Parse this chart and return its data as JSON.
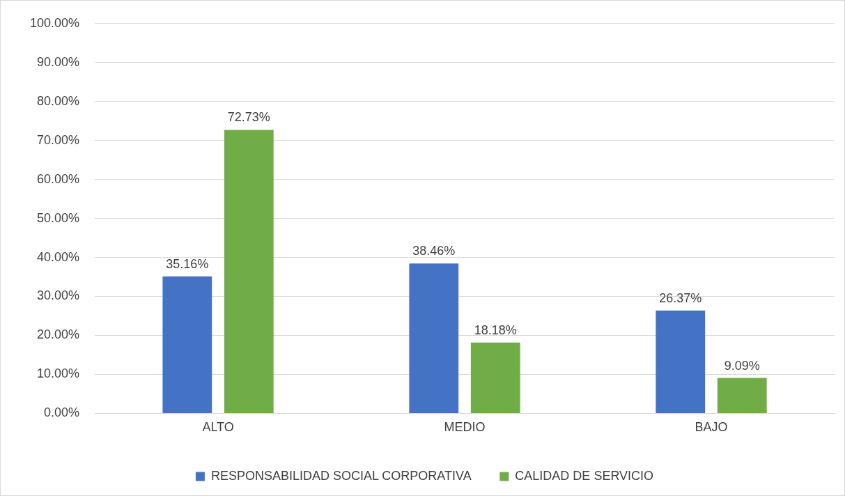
{
  "chart_data": {
    "type": "bar",
    "categories": [
      "ALTO",
      "MEDIO",
      "BAJO"
    ],
    "series": [
      {
        "name": "RESPONSABILIDAD SOCIAL CORPORATIVA",
        "color": "#4472c4",
        "values": [
          35.16,
          38.46,
          26.37
        ],
        "value_labels": [
          "35.16%",
          "38.46%",
          "26.37%"
        ]
      },
      {
        "name": "CALIDAD DE SERVICIO",
        "color": "#70ad47",
        "values": [
          72.73,
          18.18,
          9.09
        ],
        "value_labels": [
          "72.73%",
          "18.18%",
          "9.09%"
        ]
      }
    ],
    "ylim": [
      0,
      100
    ],
    "yticks": [
      {
        "value": 0,
        "label": "0.00%"
      },
      {
        "value": 10,
        "label": "10.00%"
      },
      {
        "value": 20,
        "label": "20.00%"
      },
      {
        "value": 30,
        "label": "30.00%"
      },
      {
        "value": 40,
        "label": "40.00%"
      },
      {
        "value": 50,
        "label": "50.00%"
      },
      {
        "value": 60,
        "label": "60.00%"
      },
      {
        "value": 70,
        "label": "70.00%"
      },
      {
        "value": 80,
        "label": "80.00%"
      },
      {
        "value": 90,
        "label": "90.00%"
      },
      {
        "value": 100,
        "label": "100.00%"
      }
    ],
    "grid": "y",
    "legend": "bottom"
  }
}
